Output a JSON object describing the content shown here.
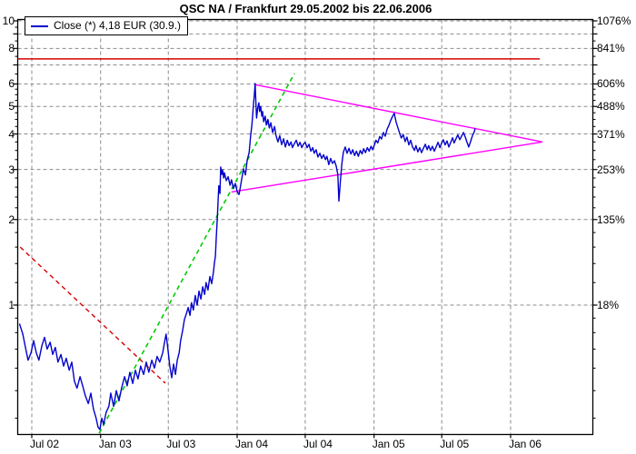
{
  "window": {
    "background": "#ffffff"
  },
  "chart_data": {
    "type": "line",
    "title": "QSC NA / Frankfurt 29.05.2002 bis 22.06.2006",
    "legend": {
      "series_label": "Close (*) 4,18 EUR (30.9.)",
      "position": "top-left"
    },
    "grid": true,
    "y_scale": "log",
    "ylim_eur": [
      0.35,
      10.2
    ],
    "x_range_dates": [
      "29.05.2002",
      "22.06.2006"
    ],
    "x_axis": {
      "tick_labels": [
        "Jul 02",
        "Jan 03",
        "Jul 03",
        "Jan 04",
        "Jul 04",
        "Jan 05",
        "Jul 05",
        "Jan 06"
      ],
      "tick_days": [
        33,
        217,
        398,
        582,
        764,
        948,
        1129,
        1313
      ]
    },
    "y_axis_left": {
      "unit": "EUR",
      "labels": [
        "10",
        "8",
        "6",
        "5",
        "4",
        "3",
        "2",
        "1"
      ],
      "label_values": [
        10,
        8,
        6,
        5,
        4,
        3,
        2,
        1
      ],
      "grid_values": [
        1,
        2,
        3,
        4,
        5,
        6,
        7,
        8,
        9,
        10
      ],
      "minor_ticks": [
        0.4,
        0.5,
        0.6,
        0.7,
        0.8,
        0.9,
        1.2,
        1.4,
        1.6,
        1.8,
        2.2,
        2.4,
        2.6,
        2.8,
        3.25,
        3.5,
        3.75,
        4.25,
        4.5,
        4.75,
        5.25,
        5.5,
        5.75,
        6.5,
        7.5,
        8.5,
        9.5
      ]
    },
    "y_axis_right": {
      "unit": "percent",
      "labels": [
        "1076%",
        "841%",
        "606%",
        "488%",
        "371%",
        "253%",
        "135%",
        "18%"
      ],
      "label_values": [
        10,
        8,
        6,
        5,
        4,
        3,
        2,
        1
      ]
    },
    "series": {
      "name": "Close",
      "unit": "EUR",
      "x_unit": "days_since_2002-05-29",
      "points": [
        [
          0,
          0.86
        ],
        [
          4,
          0.83
        ],
        [
          9,
          0.79
        ],
        [
          16,
          0.71
        ],
        [
          23,
          0.64
        ],
        [
          31,
          0.68
        ],
        [
          38,
          0.75
        ],
        [
          45,
          0.68
        ],
        [
          52,
          0.64
        ],
        [
          60,
          0.72
        ],
        [
          67,
          0.77
        ],
        [
          74,
          0.7
        ],
        [
          82,
          0.74
        ],
        [
          89,
          0.67
        ],
        [
          96,
          0.71
        ],
        [
          103,
          0.63
        ],
        [
          111,
          0.67
        ],
        [
          118,
          0.61
        ],
        [
          125,
          0.65
        ],
        [
          133,
          0.59
        ],
        [
          140,
          0.63
        ],
        [
          147,
          0.54
        ],
        [
          154,
          0.51
        ],
        [
          162,
          0.56
        ],
        [
          169,
          0.52
        ],
        [
          176,
          0.48
        ],
        [
          184,
          0.45
        ],
        [
          191,
          0.49
        ],
        [
          198,
          0.43
        ],
        [
          205,
          0.4
        ],
        [
          210,
          0.372
        ],
        [
          215,
          0.365
        ],
        [
          220,
          0.4
        ],
        [
          225,
          0.38
        ],
        [
          232,
          0.42
        ],
        [
          239,
          0.44
        ],
        [
          244,
          0.49
        ],
        [
          252,
          0.44
        ],
        [
          259,
          0.5
        ],
        [
          266,
          0.46
        ],
        [
          273,
          0.51
        ],
        [
          281,
          0.56
        ],
        [
          288,
          0.52
        ],
        [
          295,
          0.58
        ],
        [
          303,
          0.53
        ],
        [
          310,
          0.59
        ],
        [
          317,
          0.55
        ],
        [
          324,
          0.61
        ],
        [
          332,
          0.57
        ],
        [
          339,
          0.63
        ],
        [
          346,
          0.58
        ],
        [
          354,
          0.64
        ],
        [
          361,
          0.6
        ],
        [
          368,
          0.66
        ],
        [
          375,
          0.63
        ],
        [
          383,
          0.68
        ],
        [
          388,
          0.74
        ],
        [
          392,
          0.79
        ],
        [
          397,
          0.7
        ],
        [
          402,
          0.61
        ],
        [
          407,
          0.555
        ],
        [
          412,
          0.62
        ],
        [
          417,
          0.57
        ],
        [
          422,
          0.64
        ],
        [
          427,
          0.68
        ],
        [
          431,
          0.75
        ],
        [
          436,
          0.81
        ],
        [
          441,
          0.89
        ],
        [
          446,
          0.93
        ],
        [
          451,
          0.98
        ],
        [
          456,
          0.92
        ],
        [
          460,
          1.02
        ],
        [
          465,
          0.96
        ],
        [
          470,
          1.08
        ],
        [
          475,
          1.0
        ],
        [
          480,
          1.12
        ],
        [
          485,
          1.05
        ],
        [
          490,
          1.16
        ],
        [
          495,
          1.09
        ],
        [
          499,
          1.2
        ],
        [
          504,
          1.13
        ],
        [
          509,
          1.26
        ],
        [
          514,
          1.19
        ],
        [
          519,
          1.32
        ],
        [
          521,
          1.4
        ],
        [
          524,
          1.49
        ],
        [
          526,
          1.72
        ],
        [
          529,
          2.03
        ],
        [
          531,
          2.31
        ],
        [
          533,
          2.63
        ],
        [
          536,
          2.47
        ],
        [
          538,
          3.06
        ],
        [
          541,
          2.88
        ],
        [
          543,
          2.99
        ],
        [
          546,
          2.8
        ],
        [
          548,
          2.92
        ],
        [
          553,
          2.74
        ],
        [
          558,
          2.83
        ],
        [
          563,
          2.64
        ],
        [
          567,
          2.76
        ],
        [
          572,
          2.57
        ],
        [
          577,
          2.68
        ],
        [
          582,
          2.51
        ],
        [
          587,
          2.45
        ],
        [
          589,
          2.53
        ],
        [
          594,
          2.76
        ],
        [
          599,
          3.02
        ],
        [
          604,
          2.87
        ],
        [
          609,
          3.24
        ],
        [
          614,
          3.44
        ],
        [
          618,
          3.93
        ],
        [
          621,
          4.26
        ],
        [
          623,
          4.56
        ],
        [
          626,
          5.15
        ],
        [
          628,
          5.46
        ],
        [
          630,
          6.02
        ],
        [
          632,
          5.2
        ],
        [
          634,
          4.55
        ],
        [
          637,
          4.95
        ],
        [
          640,
          5.15
        ],
        [
          642,
          4.8
        ],
        [
          645,
          5.0
        ],
        [
          648,
          4.62
        ],
        [
          650,
          4.8
        ],
        [
          653,
          4.42
        ],
        [
          657,
          4.62
        ],
        [
          660,
          4.3
        ],
        [
          664,
          4.5
        ],
        [
          668,
          4.2
        ],
        [
          672,
          4.38
        ],
        [
          677,
          4.05
        ],
        [
          682,
          4.25
        ],
        [
          686,
          3.95
        ],
        [
          691,
          3.75
        ],
        [
          696,
          3.95
        ],
        [
          701,
          3.67
        ],
        [
          706,
          3.85
        ],
        [
          711,
          3.6
        ],
        [
          716,
          3.8
        ],
        [
          721,
          3.64
        ],
        [
          726,
          3.75
        ],
        [
          730,
          3.58
        ],
        [
          735,
          3.7
        ],
        [
          740,
          3.8
        ],
        [
          745,
          3.62
        ],
        [
          750,
          3.74
        ],
        [
          755,
          3.58
        ],
        [
          759,
          3.68
        ],
        [
          764,
          3.74
        ],
        [
          769,
          3.58
        ],
        [
          774,
          3.68
        ],
        [
          779,
          3.48
        ],
        [
          784,
          3.58
        ],
        [
          788,
          3.42
        ],
        [
          793,
          3.52
        ],
        [
          798,
          3.32
        ],
        [
          803,
          3.42
        ],
        [
          808,
          3.28
        ],
        [
          813,
          3.38
        ],
        [
          818,
          3.25
        ],
        [
          822,
          3.34
        ],
        [
          827,
          3.12
        ],
        [
          832,
          3.28
        ],
        [
          837,
          3.15
        ],
        [
          842,
          3.22
        ],
        [
          847,
          3.08
        ],
        [
          851,
          2.88
        ],
        [
          854,
          2.32
        ],
        [
          858,
          2.72
        ],
        [
          862,
          3.15
        ],
        [
          866,
          3.45
        ],
        [
          871,
          3.6
        ],
        [
          876,
          3.42
        ],
        [
          881,
          3.56
        ],
        [
          886,
          3.4
        ],
        [
          891,
          3.52
        ],
        [
          896,
          3.36
        ],
        [
          901,
          3.48
        ],
        [
          906,
          3.34
        ],
        [
          911,
          3.5
        ],
        [
          916,
          3.4
        ],
        [
          920,
          3.55
        ],
        [
          925,
          3.44
        ],
        [
          930,
          3.58
        ],
        [
          935,
          3.48
        ],
        [
          940,
          3.62
        ],
        [
          944,
          3.52
        ],
        [
          949,
          3.66
        ],
        [
          953,
          3.8
        ],
        [
          958,
          3.72
        ],
        [
          963,
          3.92
        ],
        [
          968,
          3.84
        ],
        [
          973,
          4.05
        ],
        [
          978,
          3.93
        ],
        [
          983,
          4.16
        ],
        [
          988,
          4.3
        ],
        [
          992,
          4.45
        ],
        [
          997,
          4.6
        ],
        [
          1002,
          4.73
        ],
        [
          1007,
          4.4
        ],
        [
          1012,
          4.2
        ],
        [
          1017,
          4.0
        ],
        [
          1021,
          3.87
        ],
        [
          1026,
          3.98
        ],
        [
          1031,
          3.76
        ],
        [
          1036,
          3.9
        ],
        [
          1041,
          3.66
        ],
        [
          1046,
          3.8
        ],
        [
          1051,
          3.6
        ],
        [
          1056,
          3.5
        ],
        [
          1060,
          3.64
        ],
        [
          1065,
          3.46
        ],
        [
          1070,
          3.58
        ],
        [
          1075,
          3.44
        ],
        [
          1080,
          3.56
        ],
        [
          1085,
          3.68
        ],
        [
          1090,
          3.52
        ],
        [
          1094,
          3.64
        ],
        [
          1099,
          3.5
        ],
        [
          1104,
          3.62
        ],
        [
          1109,
          3.48
        ],
        [
          1114,
          3.6
        ],
        [
          1119,
          3.74
        ],
        [
          1124,
          3.58
        ],
        [
          1128,
          3.7
        ],
        [
          1133,
          3.82
        ],
        [
          1138,
          3.66
        ],
        [
          1143,
          3.78
        ],
        [
          1148,
          3.6
        ],
        [
          1153,
          3.74
        ],
        [
          1158,
          3.88
        ],
        [
          1162,
          3.72
        ],
        [
          1167,
          3.85
        ],
        [
          1172,
          3.97
        ],
        [
          1177,
          3.82
        ],
        [
          1182,
          3.93
        ],
        [
          1187,
          4.05
        ],
        [
          1192,
          3.9
        ],
        [
          1196,
          3.76
        ],
        [
          1201,
          3.6
        ],
        [
          1206,
          3.76
        ],
        [
          1211,
          3.95
        ],
        [
          1216,
          4.07
        ],
        [
          1218,
          4.18
        ]
      ]
    },
    "overlays": {
      "resistance_line": {
        "style": "solid",
        "color": "#d40000",
        "points": [
          [
            -5,
            7.35
          ],
          [
            1391,
            7.35
          ]
        ]
      },
      "triangle_upper": {
        "style": "solid",
        "color": "#ff00ff",
        "points": [
          [
            628,
            5.97
          ],
          [
            1398,
            3.75
          ]
        ]
      },
      "triangle_lower": {
        "style": "solid",
        "color": "#ff00ff",
        "points": [
          [
            567,
            2.5
          ],
          [
            1398,
            3.75
          ]
        ]
      },
      "uptrend_line": {
        "style": "dashed",
        "color": "#00cc00",
        "points": [
          [
            213,
            0.354
          ],
          [
            735,
            6.53
          ]
        ]
      },
      "downtrend_line": {
        "style": "dashed",
        "color": "#d40000",
        "points": [
          [
            2,
            1.6
          ],
          [
            390,
            0.531
          ]
        ]
      }
    },
    "colors": {
      "price": "#0000cc",
      "grid": "#8c8c8c",
      "axis": "#000000",
      "background": "#ffffff"
    }
  }
}
